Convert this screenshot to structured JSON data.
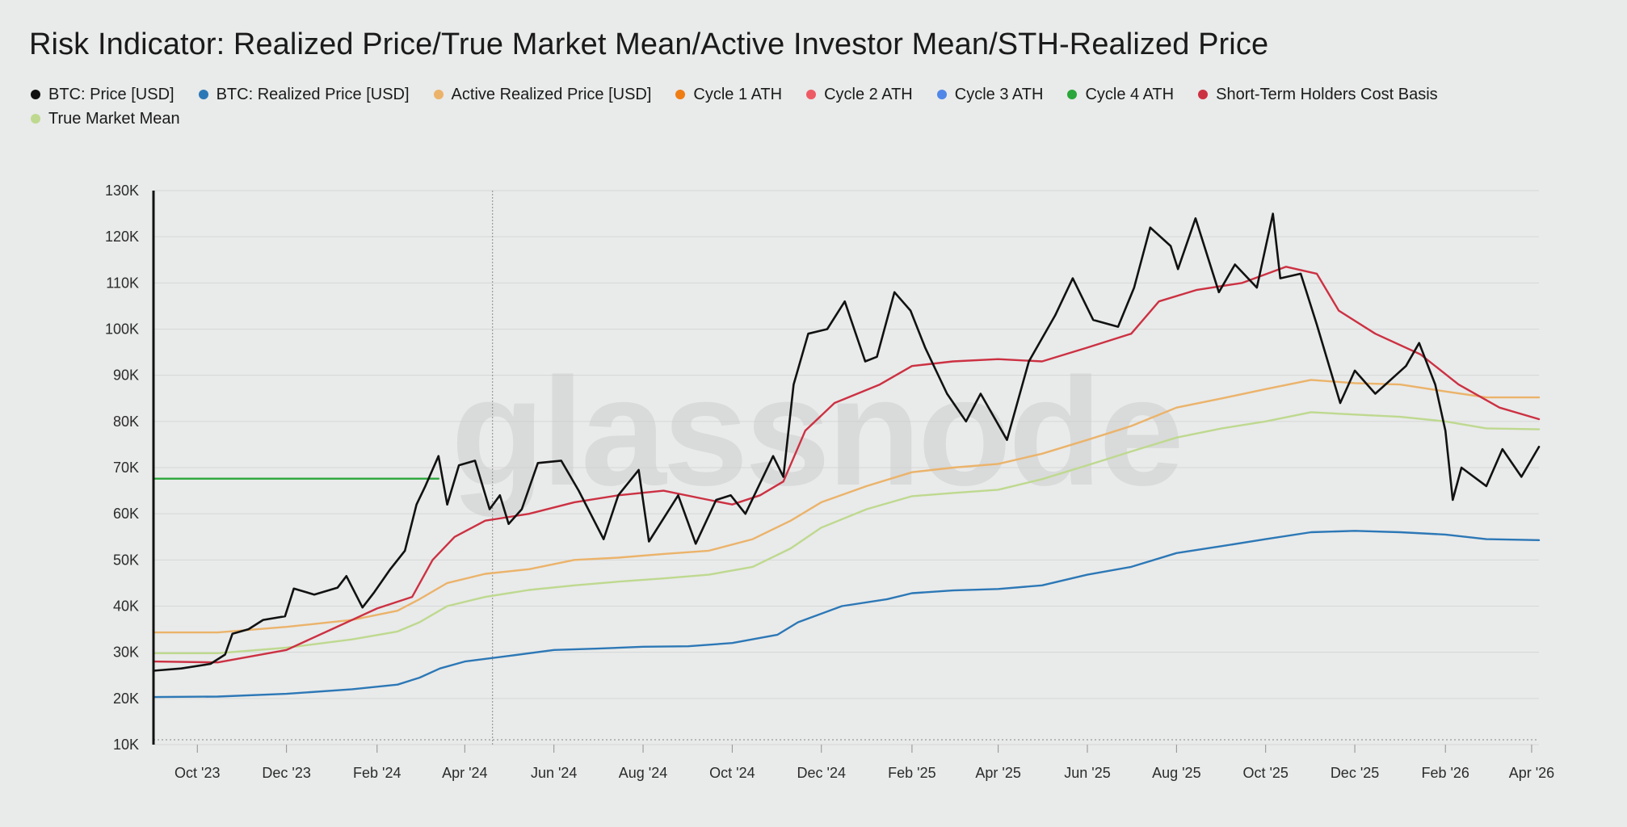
{
  "chart_data": {
    "type": "line",
    "title": "Risk Indicator: Realized Price/True Market Mean/Active Investor Mean/STH-Realized Price",
    "xlabel": "",
    "ylabel": "",
    "ylim": [
      10000,
      130000
    ],
    "xlim": [
      "2023-09-01",
      "2026-04-06"
    ],
    "yticks": [
      10000,
      20000,
      30000,
      40000,
      50000,
      60000,
      70000,
      80000,
      90000,
      100000,
      110000,
      120000,
      130000
    ],
    "ytick_labels": [
      "10K",
      "20K",
      "30K",
      "40K",
      "50K",
      "60K",
      "70K",
      "80K",
      "90K",
      "100K",
      "110K",
      "120K",
      "130K"
    ],
    "xticks": [
      "2023-10-01",
      "2023-12-01",
      "2024-02-01",
      "2024-04-01",
      "2024-06-01",
      "2024-08-01",
      "2024-10-01",
      "2024-12-01",
      "2025-02-01",
      "2025-04-01",
      "2025-06-01",
      "2025-08-01",
      "2025-10-01",
      "2025-12-01",
      "2026-02-01",
      "2026-04-01"
    ],
    "xtick_labels": [
      "Oct '23",
      "Dec '23",
      "Feb '24",
      "Apr '24",
      "Jun '24",
      "Aug '24",
      "Oct '24",
      "Dec '24",
      "Feb '25",
      "Apr '25",
      "Jun '25",
      "Aug '25",
      "Oct '25",
      "Dec '25",
      "Feb '26",
      "Apr '26"
    ],
    "grid": true,
    "legend_position": "top-left",
    "watermark": "glassnode",
    "crosshair_date": "2024-04-20",
    "series": [
      {
        "name": "BTC: Price [USD]",
        "color": "#111111",
        "in_legend": true,
        "points": [
          [
            "2023-09-01",
            26000
          ],
          [
            "2023-09-20",
            26500
          ],
          [
            "2023-10-10",
            27500
          ],
          [
            "2023-10-20",
            29500
          ],
          [
            "2023-10-25",
            34000
          ],
          [
            "2023-11-05",
            35000
          ],
          [
            "2023-11-15",
            37000
          ],
          [
            "2023-11-30",
            37800
          ],
          [
            "2023-12-06",
            43800
          ],
          [
            "2023-12-20",
            42500
          ],
          [
            "2024-01-05",
            44000
          ],
          [
            "2024-01-11",
            46500
          ],
          [
            "2024-01-22",
            39700
          ],
          [
            "2024-01-30",
            43000
          ],
          [
            "2024-02-10",
            48000
          ],
          [
            "2024-02-20",
            52000
          ],
          [
            "2024-02-28",
            62000
          ],
          [
            "2024-03-05",
            66000
          ],
          [
            "2024-03-14",
            72500
          ],
          [
            "2024-03-20",
            62000
          ],
          [
            "2024-03-28",
            70500
          ],
          [
            "2024-04-08",
            71500
          ],
          [
            "2024-04-18",
            61000
          ],
          [
            "2024-04-25",
            64000
          ],
          [
            "2024-05-01",
            57800
          ],
          [
            "2024-05-10",
            61000
          ],
          [
            "2024-05-21",
            71000
          ],
          [
            "2024-06-06",
            71500
          ],
          [
            "2024-06-18",
            65000
          ],
          [
            "2024-07-05",
            54500
          ],
          [
            "2024-07-15",
            64000
          ],
          [
            "2024-07-29",
            69500
          ],
          [
            "2024-08-05",
            54000
          ],
          [
            "2024-08-25",
            64000
          ],
          [
            "2024-09-06",
            53500
          ],
          [
            "2024-09-20",
            63000
          ],
          [
            "2024-09-30",
            64000
          ],
          [
            "2024-10-10",
            60000
          ],
          [
            "2024-10-29",
            72500
          ],
          [
            "2024-11-05",
            68000
          ],
          [
            "2024-11-12",
            88000
          ],
          [
            "2024-11-22",
            99000
          ],
          [
            "2024-12-05",
            100000
          ],
          [
            "2024-12-17",
            106000
          ],
          [
            "2024-12-31",
            93000
          ],
          [
            "2025-01-08",
            94000
          ],
          [
            "2025-01-20",
            108000
          ],
          [
            "2025-01-31",
            104000
          ],
          [
            "2025-02-10",
            96000
          ],
          [
            "2025-02-25",
            86000
          ],
          [
            "2025-03-10",
            80000
          ],
          [
            "2025-03-20",
            86000
          ],
          [
            "2025-04-07",
            76000
          ],
          [
            "2025-04-22",
            93000
          ],
          [
            "2025-05-10",
            103000
          ],
          [
            "2025-05-22",
            111000
          ],
          [
            "2025-06-05",
            102000
          ],
          [
            "2025-06-22",
            100500
          ],
          [
            "2025-07-03",
            109000
          ],
          [
            "2025-07-14",
            122000
          ],
          [
            "2025-07-28",
            118000
          ],
          [
            "2025-08-02",
            113000
          ],
          [
            "2025-08-14",
            124000
          ],
          [
            "2025-08-30",
            108000
          ],
          [
            "2025-09-10",
            114000
          ],
          [
            "2025-09-25",
            109000
          ],
          [
            "2025-10-06",
            125000
          ],
          [
            "2025-10-11",
            111000
          ],
          [
            "2025-10-25",
            112000
          ],
          [
            "2025-11-05",
            101000
          ],
          [
            "2025-11-21",
            84000
          ],
          [
            "2025-12-01",
            91000
          ],
          [
            "2025-12-15",
            86000
          ],
          [
            "2026-01-05",
            92000
          ],
          [
            "2026-01-14",
            97000
          ],
          [
            "2026-01-25",
            88000
          ],
          [
            "2026-02-01",
            78000
          ],
          [
            "2026-02-06",
            63000
          ],
          [
            "2026-02-12",
            70000
          ],
          [
            "2026-03-01",
            66000
          ],
          [
            "2026-03-12",
            74000
          ],
          [
            "2026-03-25",
            68000
          ],
          [
            "2026-04-06",
            74500
          ]
        ]
      },
      {
        "name": "BTC: Realized Price [USD]",
        "color": "#2c78b6",
        "in_legend": true,
        "points": [
          [
            "2023-09-01",
            20300
          ],
          [
            "2023-10-15",
            20400
          ],
          [
            "2023-12-01",
            21000
          ],
          [
            "2024-01-15",
            22000
          ],
          [
            "2024-02-15",
            23000
          ],
          [
            "2024-03-01",
            24500
          ],
          [
            "2024-03-15",
            26500
          ],
          [
            "2024-04-01",
            28000
          ],
          [
            "2024-05-01",
            29200
          ],
          [
            "2024-06-01",
            30500
          ],
          [
            "2024-07-01",
            30800
          ],
          [
            "2024-08-01",
            31200
          ],
          [
            "2024-09-01",
            31300
          ],
          [
            "2024-10-01",
            32000
          ],
          [
            "2024-11-01",
            33800
          ],
          [
            "2024-11-15",
            36500
          ],
          [
            "2024-12-15",
            40000
          ],
          [
            "2025-01-15",
            41500
          ],
          [
            "2025-02-01",
            42800
          ],
          [
            "2025-03-01",
            43400
          ],
          [
            "2025-04-01",
            43700
          ],
          [
            "2025-05-01",
            44500
          ],
          [
            "2025-06-01",
            46800
          ],
          [
            "2025-07-01",
            48500
          ],
          [
            "2025-08-01",
            51500
          ],
          [
            "2025-09-01",
            53000
          ],
          [
            "2025-10-01",
            54500
          ],
          [
            "2025-11-01",
            56000
          ],
          [
            "2025-12-01",
            56300
          ],
          [
            "2026-01-01",
            56000
          ],
          [
            "2026-02-01",
            55500
          ],
          [
            "2026-03-01",
            54500
          ],
          [
            "2026-04-06",
            54300
          ]
        ]
      },
      {
        "name": "Active Realized Price [USD]",
        "color": "#ebb36a",
        "in_legend": true,
        "points": [
          [
            "2023-09-01",
            34300
          ],
          [
            "2023-10-15",
            34300
          ],
          [
            "2023-12-01",
            35500
          ],
          [
            "2024-01-15",
            37000
          ],
          [
            "2024-02-15",
            39000
          ],
          [
            "2024-03-01",
            41500
          ],
          [
            "2024-03-20",
            45000
          ],
          [
            "2024-04-15",
            47000
          ],
          [
            "2024-05-15",
            48000
          ],
          [
            "2024-06-15",
            50000
          ],
          [
            "2024-07-15",
            50500
          ],
          [
            "2024-08-15",
            51300
          ],
          [
            "2024-09-15",
            52000
          ],
          [
            "2024-10-15",
            54500
          ],
          [
            "2024-11-10",
            58500
          ],
          [
            "2024-12-01",
            62500
          ],
          [
            "2025-01-01",
            66000
          ],
          [
            "2025-02-01",
            69000
          ],
          [
            "2025-03-01",
            70000
          ],
          [
            "2025-04-01",
            70800
          ],
          [
            "2025-05-01",
            73000
          ],
          [
            "2025-06-01",
            76000
          ],
          [
            "2025-07-01",
            79000
          ],
          [
            "2025-08-01",
            83000
          ],
          [
            "2025-09-01",
            85000
          ],
          [
            "2025-10-01",
            87000
          ],
          [
            "2025-11-01",
            89000
          ],
          [
            "2025-12-01",
            88300
          ],
          [
            "2026-01-01",
            88000
          ],
          [
            "2026-02-01",
            86500
          ],
          [
            "2026-03-01",
            85200
          ],
          [
            "2026-04-06",
            85200
          ]
        ]
      },
      {
        "name": "Cycle 1 ATH",
        "color": "#ef7d14",
        "in_legend": true,
        "points": []
      },
      {
        "name": "Cycle 2 ATH",
        "color": "#ee5a63",
        "in_legend": true,
        "points": []
      },
      {
        "name": "Cycle 3 ATH",
        "color": "#4f86e8",
        "in_legend": true,
        "points": []
      },
      {
        "name": "Cycle 4 ATH",
        "color": "#2aa63a",
        "in_legend": true,
        "points": [
          [
            "2023-09-01",
            67600
          ],
          [
            "2024-03-14",
            67600
          ]
        ]
      },
      {
        "name": "Short-Term Holders Cost Basis",
        "color": "#cc3142",
        "in_legend": true,
        "points": [
          [
            "2023-09-01",
            28000
          ],
          [
            "2023-10-15",
            27800
          ],
          [
            "2023-12-01",
            30500
          ],
          [
            "2024-01-01",
            35000
          ],
          [
            "2024-02-01",
            39500
          ],
          [
            "2024-02-25",
            42000
          ],
          [
            "2024-03-10",
            50000
          ],
          [
            "2024-03-25",
            55000
          ],
          [
            "2024-04-15",
            58500
          ],
          [
            "2024-05-15",
            60000
          ],
          [
            "2024-06-15",
            62500
          ],
          [
            "2024-07-15",
            64000
          ],
          [
            "2024-08-15",
            65000
          ],
          [
            "2024-09-15",
            63000
          ],
          [
            "2024-10-01",
            62000
          ],
          [
            "2024-10-20",
            64000
          ],
          [
            "2024-11-05",
            67000
          ],
          [
            "2024-11-20",
            78000
          ],
          [
            "2024-12-10",
            84000
          ],
          [
            "2025-01-10",
            88000
          ],
          [
            "2025-02-01",
            92000
          ],
          [
            "2025-03-01",
            93000
          ],
          [
            "2025-04-01",
            93500
          ],
          [
            "2025-05-01",
            93000
          ],
          [
            "2025-06-01",
            96000
          ],
          [
            "2025-07-01",
            99000
          ],
          [
            "2025-07-20",
            106000
          ],
          [
            "2025-08-15",
            108500
          ],
          [
            "2025-09-15",
            110000
          ],
          [
            "2025-10-15",
            113500
          ],
          [
            "2025-11-05",
            112000
          ],
          [
            "2025-11-20",
            104000
          ],
          [
            "2025-12-15",
            99000
          ],
          [
            "2026-01-15",
            94500
          ],
          [
            "2026-02-10",
            88000
          ],
          [
            "2026-03-10",
            83000
          ],
          [
            "2026-04-06",
            80500
          ]
        ]
      },
      {
        "name": "True Market Mean",
        "color": "#bed98f",
        "in_legend": true,
        "points": [
          [
            "2023-09-01",
            29800
          ],
          [
            "2023-10-15",
            29800
          ],
          [
            "2023-12-01",
            31000
          ],
          [
            "2024-01-15",
            32800
          ],
          [
            "2024-02-15",
            34500
          ],
          [
            "2024-03-01",
            36500
          ],
          [
            "2024-03-20",
            40000
          ],
          [
            "2024-04-15",
            42000
          ],
          [
            "2024-05-15",
            43500
          ],
          [
            "2024-06-15",
            44500
          ],
          [
            "2024-07-15",
            45300
          ],
          [
            "2024-08-15",
            46000
          ],
          [
            "2024-09-15",
            46800
          ],
          [
            "2024-10-15",
            48500
          ],
          [
            "2024-11-10",
            52500
          ],
          [
            "2024-12-01",
            57000
          ],
          [
            "2025-01-01",
            61000
          ],
          [
            "2025-02-01",
            63800
          ],
          [
            "2025-03-01",
            64500
          ],
          [
            "2025-04-01",
            65200
          ],
          [
            "2025-05-01",
            67500
          ],
          [
            "2025-06-01",
            70500
          ],
          [
            "2025-07-01",
            73500
          ],
          [
            "2025-08-01",
            76500
          ],
          [
            "2025-09-01",
            78500
          ],
          [
            "2025-10-01",
            80000
          ],
          [
            "2025-11-01",
            82000
          ],
          [
            "2025-12-01",
            81500
          ],
          [
            "2026-01-01",
            81000
          ],
          [
            "2026-02-01",
            80000
          ],
          [
            "2026-03-01",
            78500
          ],
          [
            "2026-04-06",
            78300
          ]
        ]
      }
    ]
  }
}
